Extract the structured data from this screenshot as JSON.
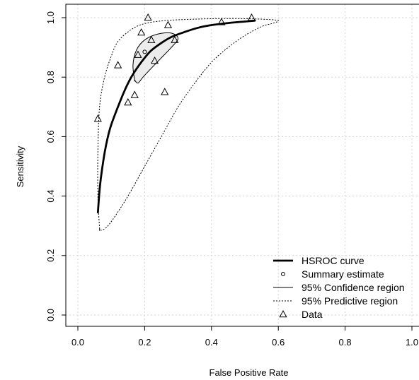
{
  "chart_data": {
    "type": "scatter",
    "xlabel": "False Positive Rate",
    "ylabel": "Sensitivity",
    "xlim": [
      0,
      1
    ],
    "ylim": [
      0,
      1
    ],
    "grid": true,
    "legend_position": "bottom-right",
    "x_ticks": [
      "0.0",
      "0.2",
      "0.4",
      "0.6",
      "0.8",
      "1.0"
    ],
    "y_ticks": [
      "0.0",
      "0.2",
      "0.4",
      "0.6",
      "0.8",
      "1.0"
    ],
    "legend": [
      {
        "label": "HSROC curve",
        "symbol": "thick-line"
      },
      {
        "label": "Summary estimate",
        "symbol": "circle"
      },
      {
        "label": "95% Confidence region",
        "symbol": "thin-line"
      },
      {
        "label": "95% Predictive region",
        "symbol": "dotted-line"
      },
      {
        "label": "Data",
        "symbol": "triangle"
      }
    ],
    "series": [
      {
        "name": "HSROC curve",
        "kind": "line",
        "x": [
          0.06,
          0.065,
          0.07,
          0.08,
          0.09,
          0.1,
          0.12,
          0.14,
          0.16,
          0.18,
          0.2,
          0.22,
          0.25,
          0.28,
          0.32,
          0.36,
          0.4,
          0.45,
          0.5,
          0.53
        ],
        "y": [
          0.345,
          0.42,
          0.47,
          0.545,
          0.6,
          0.64,
          0.7,
          0.755,
          0.8,
          0.835,
          0.865,
          0.89,
          0.915,
          0.935,
          0.952,
          0.966,
          0.975,
          0.982,
          0.987,
          0.99
        ]
      },
      {
        "name": "Summary estimate",
        "kind": "point",
        "x": [
          0.2
        ],
        "y": [
          0.885
        ]
      },
      {
        "name": "95% Confidence region",
        "kind": "closed-curve",
        "x": [
          0.17,
          0.165,
          0.175,
          0.2,
          0.24,
          0.28,
          0.3,
          0.28,
          0.25,
          0.22,
          0.195,
          0.18,
          0.17
        ],
        "y": [
          0.79,
          0.84,
          0.89,
          0.925,
          0.945,
          0.948,
          0.93,
          0.9,
          0.865,
          0.83,
          0.8,
          0.78,
          0.79
        ]
      },
      {
        "name": "95% Predictive region",
        "kind": "closed-curve",
        "x": [
          0.065,
          0.06,
          0.06,
          0.065,
          0.08,
          0.1,
          0.12,
          0.16,
          0.2,
          0.26,
          0.35,
          0.45,
          0.55,
          0.6,
          0.58,
          0.55,
          0.5,
          0.45,
          0.4,
          0.35,
          0.3,
          0.25,
          0.2,
          0.15,
          0.11,
          0.09,
          0.08,
          0.07,
          0.065
        ],
        "y": [
          0.29,
          0.4,
          0.55,
          0.7,
          0.8,
          0.87,
          0.92,
          0.96,
          0.98,
          0.99,
          0.995,
          0.997,
          0.995,
          0.99,
          0.98,
          0.97,
          0.94,
          0.9,
          0.85,
          0.78,
          0.7,
          0.6,
          0.5,
          0.4,
          0.33,
          0.3,
          0.29,
          0.285,
          0.29
        ]
      },
      {
        "name": "Data",
        "kind": "marker",
        "x": [
          0.06,
          0.12,
          0.15,
          0.17,
          0.18,
          0.19,
          0.21,
          0.22,
          0.23,
          0.26,
          0.27,
          0.29,
          0.43,
          0.52
        ],
        "y": [
          0.66,
          0.84,
          0.715,
          0.74,
          0.875,
          0.95,
          1.0,
          0.925,
          0.855,
          0.75,
          0.975,
          0.925,
          0.985,
          1.0
        ]
      }
    ]
  }
}
